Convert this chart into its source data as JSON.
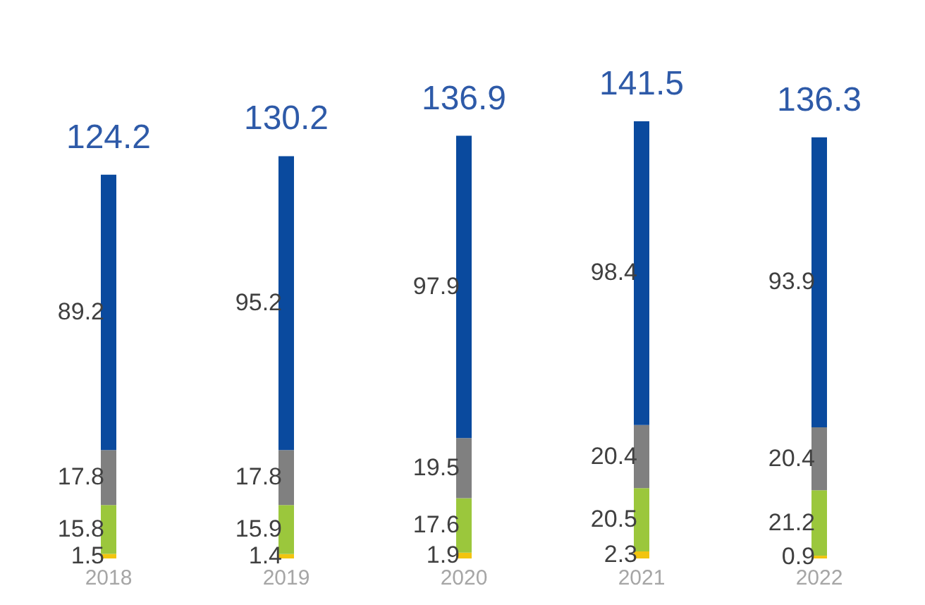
{
  "chart_data": {
    "type": "bar",
    "stacked": true,
    "data_labels": true,
    "categories": [
      "2018",
      "2019",
      "2020",
      "2021",
      "2022"
    ],
    "series": [
      {
        "color": "#f2c40f",
        "values": [
          1.5,
          1.4,
          1.9,
          2.3,
          0.9
        ]
      },
      {
        "color": "#9bc73c",
        "values": [
          15.8,
          15.9,
          17.6,
          20.5,
          21.2
        ]
      },
      {
        "color": "#808080",
        "values": [
          17.8,
          17.8,
          19.5,
          20.4,
          20.4
        ]
      },
      {
        "color": "#0a4a9e",
        "values": [
          89.2,
          95.2,
          97.9,
          98.4,
          93.9
        ]
      }
    ],
    "totals": [
      "124.2",
      "130.2",
      "136.9",
      "141.5",
      "136.3"
    ]
  }
}
